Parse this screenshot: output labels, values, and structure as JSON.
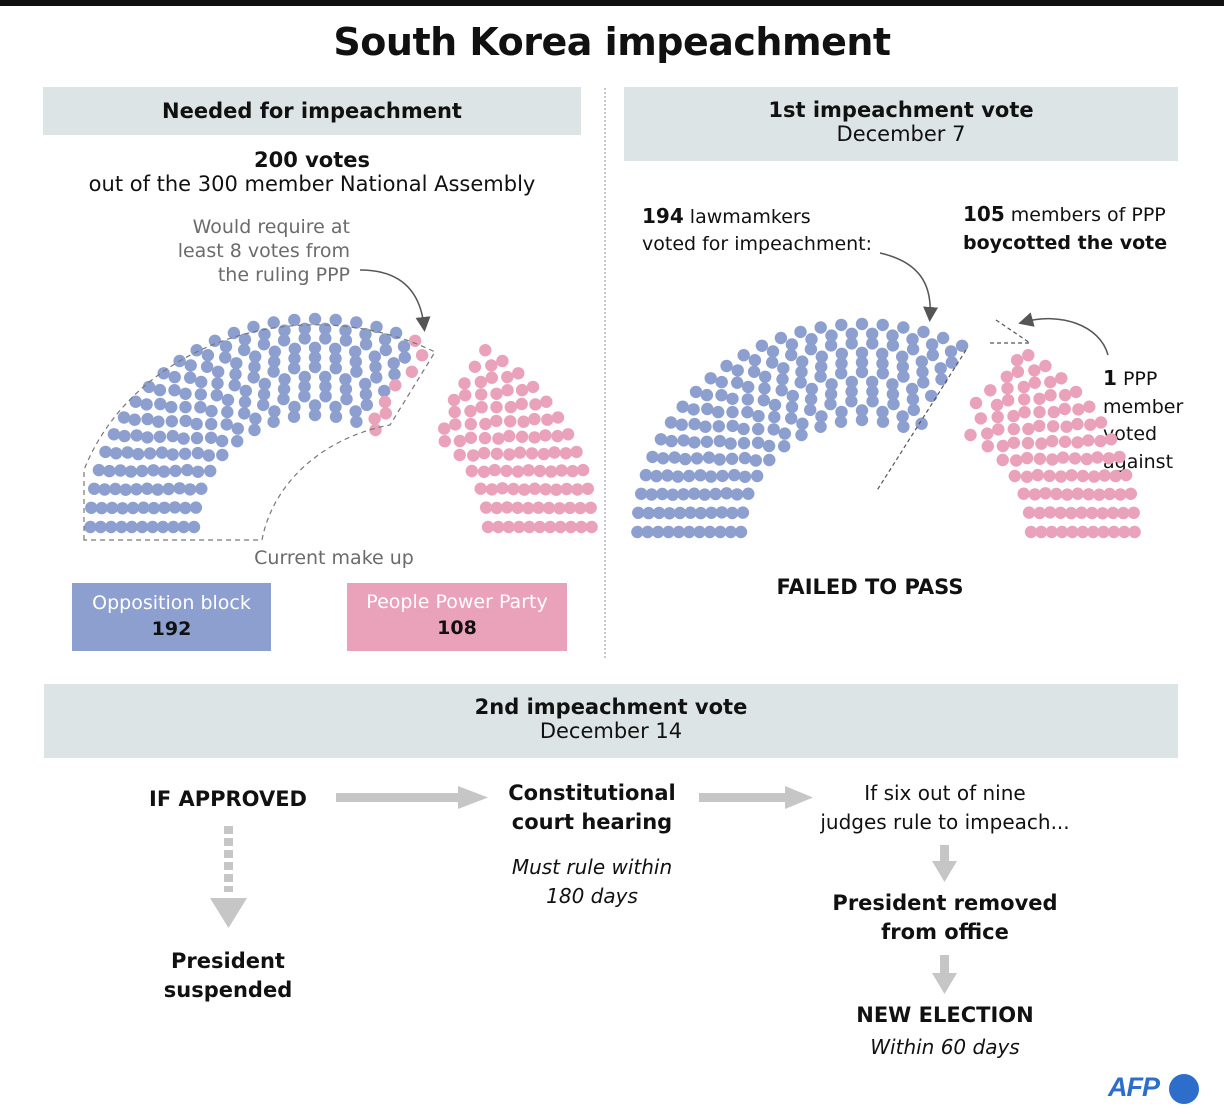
{
  "title": "South Korea impeachment",
  "colors": {
    "opposition": "#8d9fce",
    "ppp": "#e9a2b9",
    "band": "#dde4e5",
    "arrow": "#c6c6c6"
  },
  "needed": {
    "header": "Needed for impeachment",
    "votes_bold": "200 votes",
    "votes_rest": "out of the 300 member National Assembly",
    "note_line1": "Would require at",
    "note_line2": "least 8 votes from",
    "note_line3": "the ruling PPP",
    "makeup_label": "Current make up",
    "opposition_label": "Opposition block",
    "opposition_count": "192",
    "ppp_label": "People Power Party",
    "ppp_count": "108"
  },
  "first_vote": {
    "header": "1st impeachment vote",
    "date": "December 7",
    "for_bold": "194",
    "for_text1": "lawmamkers",
    "for_text2": "voted for impeachment:",
    "boycott_bold": "105",
    "boycott_text1": "members of PPP",
    "boycott_text2": "boycotted the vote",
    "against_bold": "1",
    "against_text1": "PPP",
    "against_text2": "member",
    "against_text3": "voted",
    "against_text4": "against",
    "result": "FAILED TO PASS"
  },
  "second_vote": {
    "header": "2nd impeachment vote",
    "date": "December 14",
    "if_approved": "IF  APPROVED",
    "suspended1": "President",
    "suspended2": "suspended",
    "court1": "Constitutional",
    "court2": "court hearing",
    "rule1": "Must rule within",
    "rule2": "180 days",
    "judges1": "If six out of nine",
    "judges2": "judges rule to impeach...",
    "removed1": "President removed",
    "removed2": "from office",
    "election": "NEW ELECTION",
    "election_sub": "Within 60 days"
  },
  "parliament": {
    "needed": {
      "opposition": 192,
      "ppp_needed": 8,
      "ppp_rest": 100
    },
    "first": {
      "voted_for": 194,
      "voted_against": 1,
      "boycotted": 105
    }
  },
  "logo": "AFP"
}
